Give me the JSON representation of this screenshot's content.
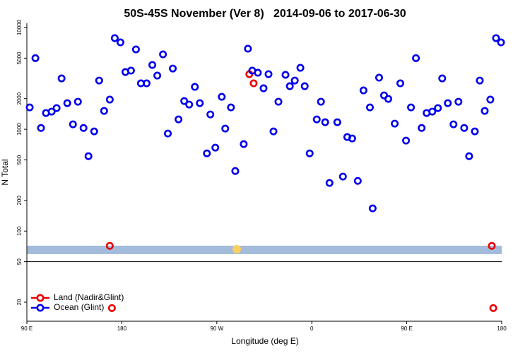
{
  "chart_data": {
    "type": "scatter",
    "title": "50S-45S November (Ver 8)   2014-09-06 to 2017-06-30",
    "x_label": "Longitude (deg E)",
    "y_label": "N Total",
    "log_y": true,
    "xlim": [
      90,
      540
    ],
    "ylim": [
      13,
      11000
    ],
    "xticks": [
      {
        "value": 90,
        "label": "90 E"
      },
      180,
      {
        "value": 270,
        "label": "90 W"
      },
      {
        "value": 360,
        "label": "0"
      },
      {
        "value": 450,
        "label": "90 E"
      },
      {
        "value": 540,
        "label": "180"
      }
    ],
    "yticks": [
      10000,
      5000,
      2000,
      1000,
      500,
      200,
      100,
      50,
      20
    ],
    "legend": "bottom-left",
    "series": [
      {
        "name": "Land (Nadir&Glint)",
        "color": "#ee0000",
        "x": [
          168.6,
          300.8,
          304.9,
          530.6,
          170.6,
          532.0
        ],
        "values": [
          71.5,
          3480,
          2828,
          71.5,
          17.5,
          17.5
        ]
      },
      {
        "name": "Ocean (Glint)",
        "color": "#0000ee",
        "x": [
          92.7,
          98.1,
          103.4,
          108.1,
          113.5,
          118.2,
          122.9,
          128.3,
          133.7,
          138.4,
          143.7,
          148.4,
          153.8,
          158.5,
          163.2,
          168.6,
          173.3,
          178.7,
          183.4,
          188.7,
          193.4,
          198.1,
          203.5,
          208.9,
          213.6,
          219.0,
          223.6,
          228.3,
          233.7,
          239.1,
          243.8,
          249.2,
          253.9,
          260.6,
          263.9,
          268.6,
          274.7,
          278.0,
          283.4,
          287.5,
          295.5,
          299.5,
          303.6,
          308.9,
          314.3,
          319.0,
          323.7,
          328.4,
          335.1,
          339.2,
          343.9,
          349.2,
          353.3,
          358.0,
          364.7,
          368.7,
          372.7,
          376.8,
          384.2,
          389.5,
          393.6,
          398.3,
          403.6,
          409.0,
          415.1,
          417.7,
          423.8,
          428.5,
          432.5,
          438.6,
          443.9,
          449.3,
          454.0,
          458.7,
          464.1,
          468.8,
          474.2,
          479.5,
          483.6,
          488.9,
          494.3,
          499.0,
          504.4,
          509.1,
          514.5,
          519.2,
          523.9,
          529.2,
          534.6,
          539.3
        ],
        "values": [
          1640,
          5000,
          1030,
          1445,
          1492,
          1616,
          3162,
          1807,
          1119,
          1866,
          1030,
          544,
          953,
          3013,
          1516,
          1958,
          7870,
          7145,
          3652,
          3770,
          6095,
          2828,
          2828,
          4285,
          3370,
          5447,
          908,
          3953,
          1251,
          1895,
          1750,
          2610,
          1807,
          580,
          1399,
          660,
          2086,
          1016,
          1640,
          389,
          715,
          6194,
          3770,
          3594,
          2528,
          3480,
          953,
          1866,
          3427,
          2652,
          3013,
          4018,
          2652,
          580,
          1251,
          1866,
          1173,
          297,
          1173,
          343,
          839,
          812,
          311,
          2410,
          1640,
          167,
          3213,
          2154,
          1989,
          1137,
          2828,
          774,
          1640,
          5000,
          1030,
          1445,
          1492,
          1616,
          3162,
          1807,
          1119,
          1866,
          1030,
          544,
          953,
          3013,
          1516,
          1958,
          7870,
          7145
        ]
      }
    ]
  }
}
